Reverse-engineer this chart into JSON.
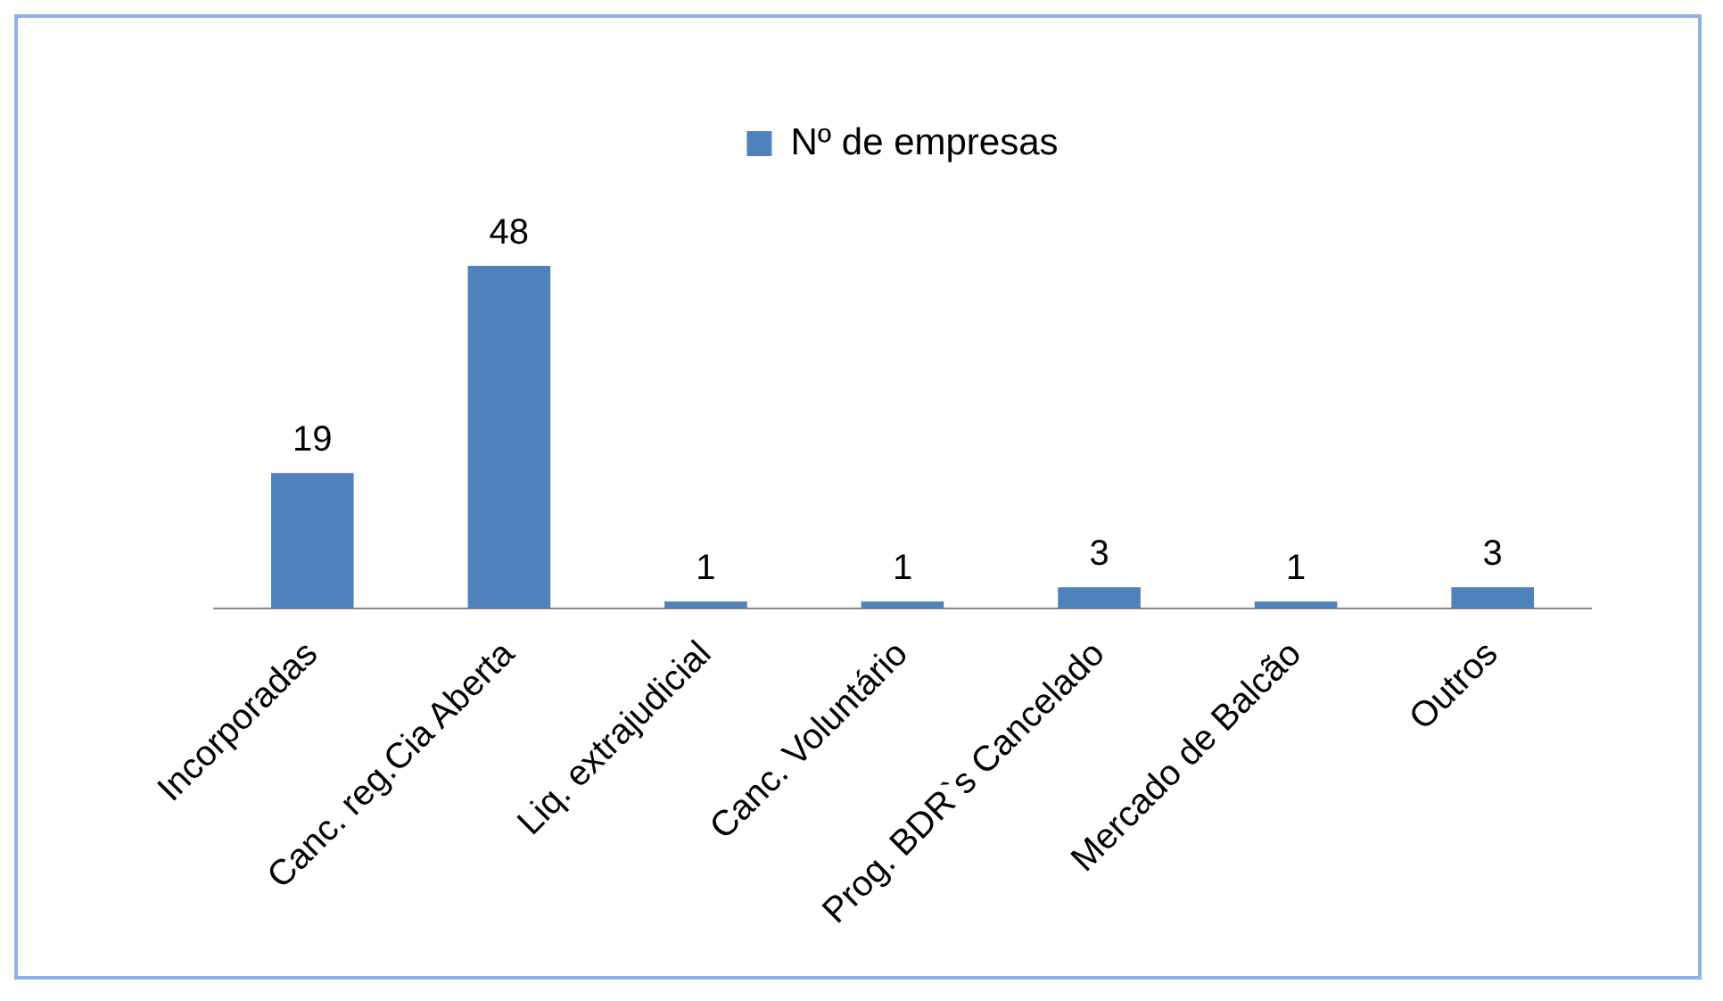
{
  "chart_data": {
    "type": "bar",
    "categories": [
      "Incorporadas",
      "Canc. reg.Cia Aberta",
      "Liq. extrajudicial",
      "Canc. Voluntário",
      "Prog. BDR`s Cancelado",
      "Mercado de Balcão",
      "Outros"
    ],
    "series": [
      {
        "name": "Nº de empresas",
        "color": "#4f81bd",
        "values": [
          19,
          48,
          1,
          1,
          3,
          1,
          3
        ]
      }
    ],
    "data_labels": true,
    "legend": "top",
    "grid": false
  }
}
